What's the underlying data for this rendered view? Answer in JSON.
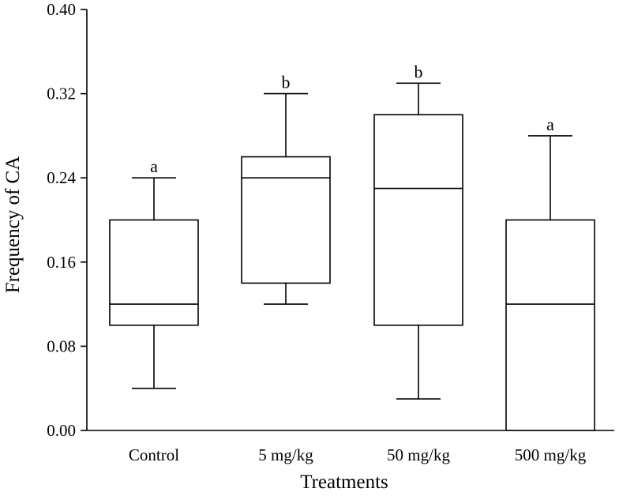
{
  "chart_data": {
    "type": "box",
    "xlabel": "Treatments",
    "ylabel": "Frequency of CA",
    "ylim": [
      0.0,
      0.4
    ],
    "yticks": [
      "0.00",
      "0.08",
      "0.16",
      "0.24",
      "0.32",
      "0.40"
    ],
    "grid": false,
    "categories": [
      "Control",
      "5 mg/kg",
      "50 mg/kg",
      "500 mg/kg"
    ],
    "boxes": [
      {
        "category": "Control",
        "min": 0.04,
        "q1": 0.1,
        "median": 0.12,
        "q3": 0.2,
        "max": 0.24,
        "label": "a"
      },
      {
        "category": "5 mg/kg",
        "min": 0.12,
        "q1": 0.14,
        "median": 0.24,
        "q3": 0.26,
        "max": 0.32,
        "label": "b"
      },
      {
        "category": "50 mg/kg",
        "min": 0.03,
        "q1": 0.1,
        "median": 0.23,
        "q3": 0.3,
        "max": 0.33,
        "label": "b"
      },
      {
        "category": "500 mg/kg",
        "min": 0.0,
        "q1": 0.0,
        "median": 0.12,
        "q3": 0.2,
        "max": 0.28,
        "label": "a"
      }
    ]
  }
}
